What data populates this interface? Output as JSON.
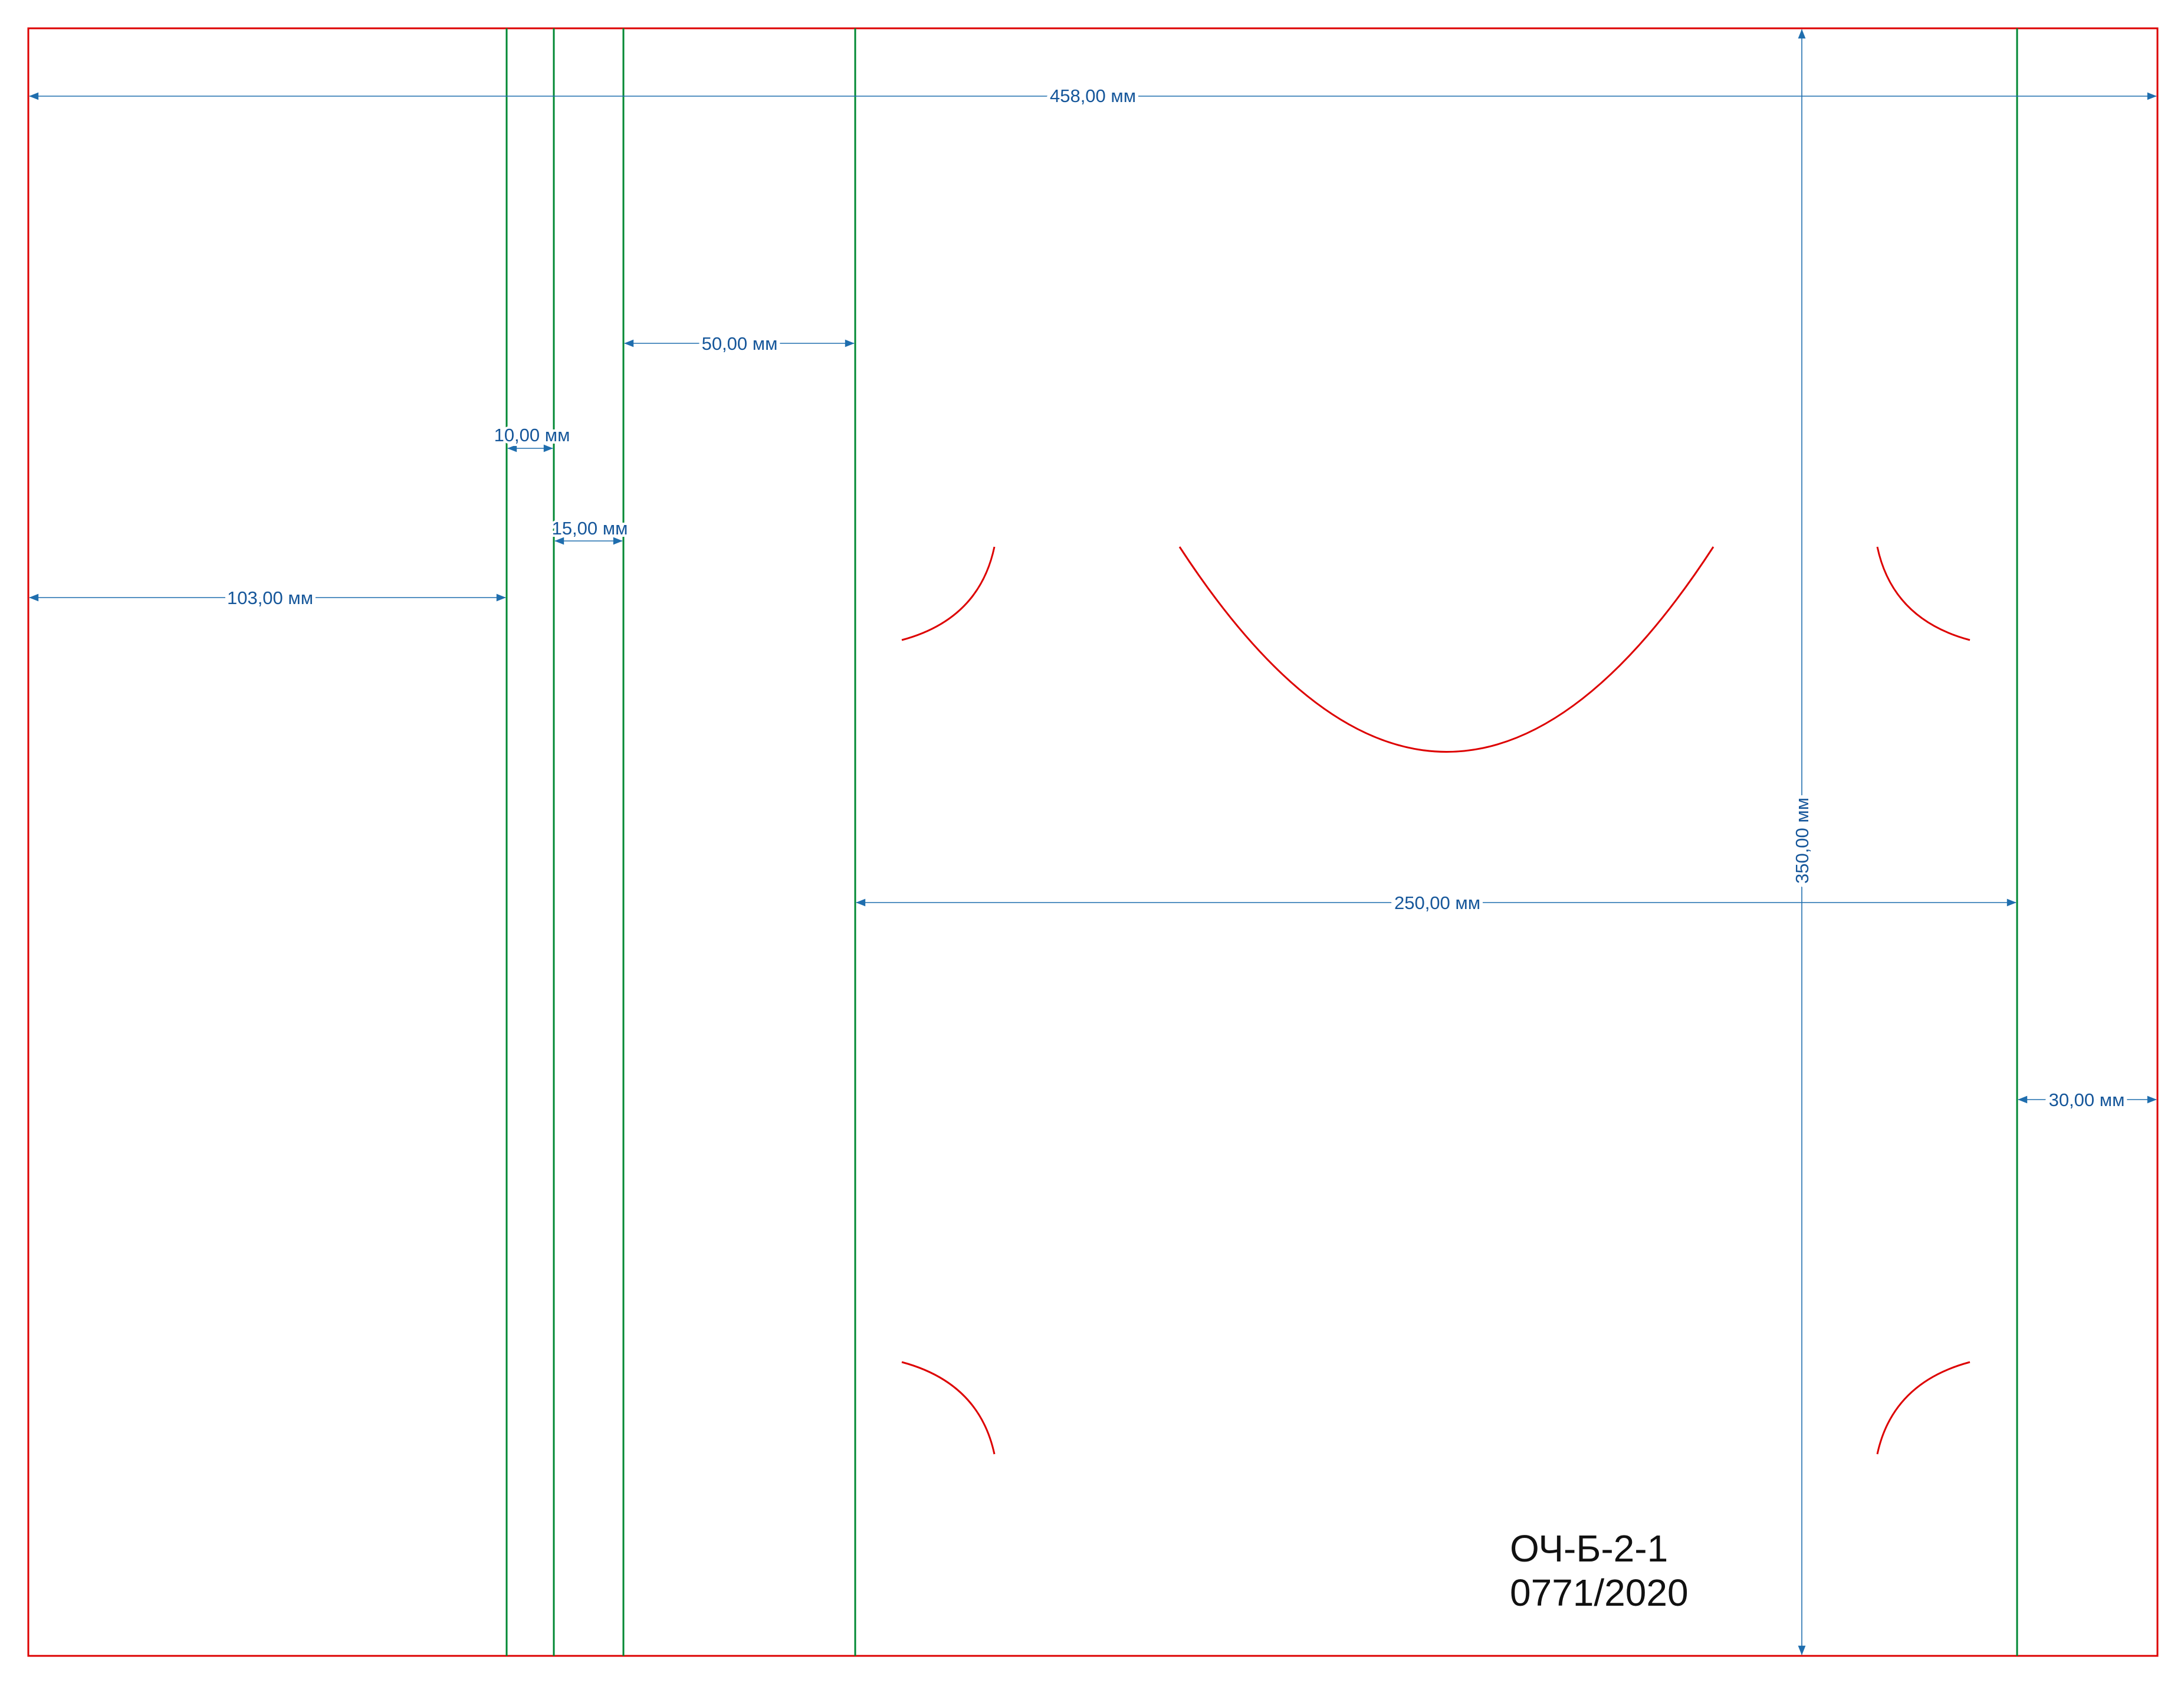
{
  "colors": {
    "cut_line": "#dd0000",
    "fold_line": "#008833",
    "dimension": "#1f6eae",
    "dimension_text": "#15569a",
    "label_text": "#111111"
  },
  "dimensions": {
    "total_width": "458,00 мм",
    "height": "350,00 мм",
    "left_panel": "103,00 мм",
    "gap_1": "10,00 мм",
    "gap_2": "15,00 мм",
    "spine_flap": "50,00 мм",
    "front_panel": "250,00 мм",
    "right_flap": "30,00 мм"
  },
  "product": {
    "code": "ОЧ-Б-2-1",
    "number": "0771/2020"
  }
}
